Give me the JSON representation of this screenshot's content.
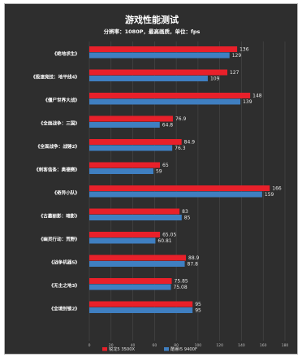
{
  "chart_data": {
    "type": "bar",
    "orientation": "horizontal",
    "title": "游戏性能测试",
    "subtitle": "分辨率：1080P，最高画质，单位：fps",
    "categories": [
      "《绝地求生》",
      "《极速竞技：地平线4》",
      "《僵尸世界大战》",
      "《全面战争：三国》",
      "《全面战争：战锤2》",
      "《刺客信条：奥德赛》",
      "《奇异小队》",
      "《古墓丽影：暗影》",
      "《幽灵行动：荒野》",
      "《战争机器5》",
      "《无主之地3》",
      "《全境封锁2》"
    ],
    "series": [
      {
        "name": "锐龙5 3500X",
        "color": "#e8202a",
        "values": [
          136,
          127,
          148,
          76.9,
          84.9,
          65,
          166,
          83,
          65.05,
          88.9,
          75.85,
          95
        ]
      },
      {
        "name": "酷睿i5 9400F",
        "color": "#3f7fc1",
        "values": [
          129,
          109,
          139,
          64.8,
          76.3,
          59,
          159,
          85,
          60.81,
          87.8,
          75.08,
          95
        ]
      }
    ],
    "data_labels": [
      [
        "136",
        "127",
        "148",
        "76.9",
        "84.9",
        "65",
        "166",
        "83",
        "65.05",
        "88.9",
        "75.85",
        "95"
      ],
      [
        "129",
        "109",
        "139",
        "64.8",
        "76.3",
        "59",
        "159",
        "85",
        "60.81",
        "87.8",
        "75.08",
        "95"
      ]
    ],
    "xlim": [
      0,
      180
    ],
    "xticks": [
      0,
      20,
      40,
      60,
      80,
      100,
      120,
      140,
      160,
      180
    ],
    "grid": true,
    "legend_position": "bottom"
  }
}
